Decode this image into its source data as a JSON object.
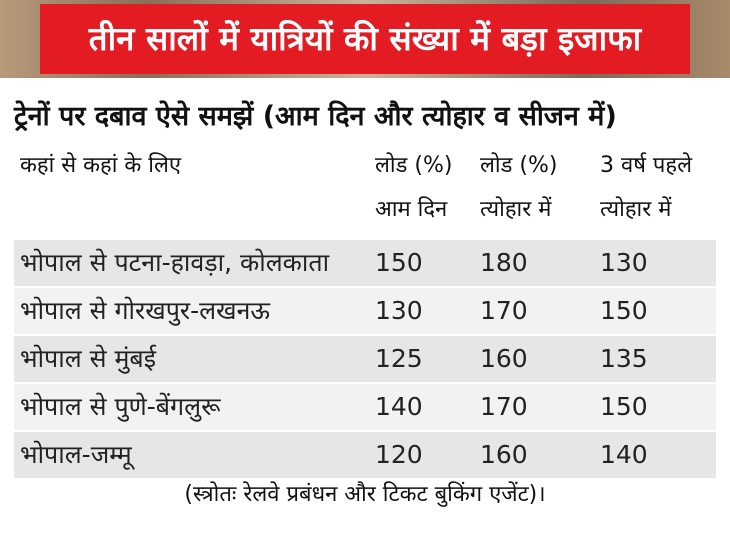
{
  "header": {
    "title": "तीन सालों में यात्रियों की संख्या में बड़ा इजाफा",
    "subtitle": "ट्रेनों पर दबाव ऐसे समझें (आम दिन और त्योहार व सीजन में)"
  },
  "table": {
    "columns": [
      [
        "कहां से कहां के लिए"
      ],
      [
        "लोड (%)",
        "आम दिन"
      ],
      [
        "लोड (%)",
        "त्योहार में"
      ],
      [
        "3 वर्ष पहले",
        "त्योहार में"
      ]
    ],
    "rows": [
      [
        "भोपाल से पटना-हावड़ा, कोलकाता",
        150,
        180,
        130
      ],
      [
        "भोपाल से गोरखपुर-लखनऊ",
        130,
        170,
        150
      ],
      [
        "भोपाल से मुंबई",
        125,
        160,
        135
      ],
      [
        "भोपाल से पुणे-बेंगलुरू",
        140,
        170,
        150
      ],
      [
        "भोपाल-जम्मू",
        120,
        160,
        140
      ]
    ]
  },
  "footer": {
    "source": "(स्त्रोतः रेलवे प्रबंधन और टिकट बुकिंग एजेंट)।"
  }
}
